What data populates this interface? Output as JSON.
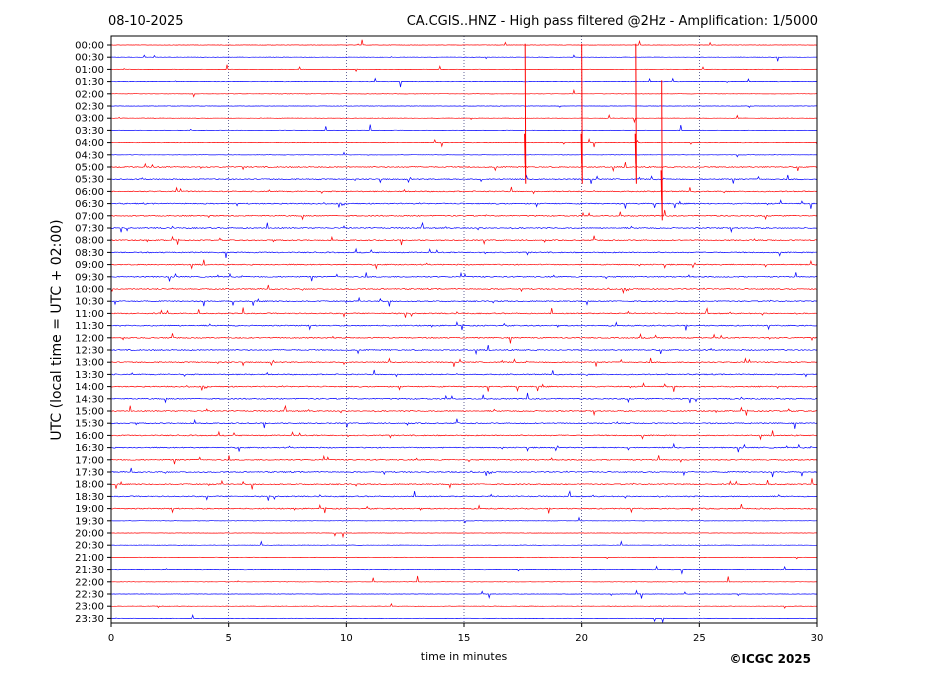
{
  "header": {
    "date": "08-10-2025",
    "title": "CA.CGIS..HNZ - High pass filtered @2Hz - Amplification: 1/5000"
  },
  "copyright": "©ICGC 2025",
  "chart_data": {
    "type": "line",
    "subtype": "helicorder",
    "xlabel": "time in minutes",
    "ylabel": "UTC (local time = UTC + 02:00)",
    "xlim": [
      0,
      30
    ],
    "x_ticks": [
      0,
      5,
      10,
      15,
      20,
      25,
      30
    ],
    "grid": "vertical dotted lines at 5, 10, 15, 20, 25 minutes",
    "trace_colors": [
      "#ff0000",
      "#0000ff"
    ],
    "rows": [
      "00:00",
      "00:30",
      "01:00",
      "01:30",
      "02:00",
      "02:30",
      "03:00",
      "03:30",
      "04:00",
      "04:30",
      "05:00",
      "05:30",
      "06:00",
      "06:30",
      "07:00",
      "07:30",
      "08:00",
      "08:30",
      "09:00",
      "09:30",
      "10:00",
      "10:30",
      "11:00",
      "11:30",
      "12:00",
      "12:30",
      "13:00",
      "13:30",
      "14:00",
      "14:30",
      "15:00",
      "15:30",
      "16:00",
      "16:30",
      "17:00",
      "17:30",
      "18:00",
      "18:30",
      "19:00",
      "19:30",
      "20:00",
      "20:30",
      "21:00",
      "21:30",
      "22:00",
      "22:30",
      "23:00",
      "23:30"
    ],
    "events": [
      {
        "row": "02:00",
        "minute": 17.6,
        "color": "#ff0000"
      },
      {
        "row": "02:00",
        "minute": 20.0,
        "color": "#ff0000"
      },
      {
        "row": "02:00",
        "minute": 22.3,
        "color": "#ff0000"
      },
      {
        "row": "03:30",
        "minute": 23.4,
        "color": "#ff0000"
      }
    ]
  }
}
